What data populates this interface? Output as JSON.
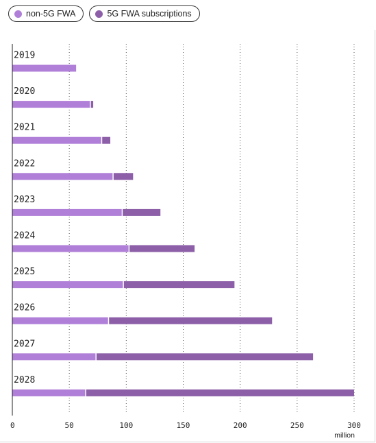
{
  "legend": [
    {
      "label": "non-5G FWA",
      "color": "#b07fd8"
    },
    {
      "label": "5G FWA subscriptions",
      "color": "#8c5fa8"
    }
  ],
  "chart_data": {
    "type": "bar",
    "orientation": "horizontal",
    "stacked": true,
    "categories": [
      "2019",
      "2020",
      "2021",
      "2022",
      "2023",
      "2024",
      "2025",
      "2026",
      "2027",
      "2028"
    ],
    "series": [
      {
        "name": "non-5G FWA",
        "color": "#b07fd8",
        "values": [
          56,
          68,
          78,
          88,
          96,
          102,
          97,
          84,
          73,
          64
        ]
      },
      {
        "name": "5G FWA subscriptions",
        "color": "#8c5fa8",
        "values": [
          0,
          3,
          8,
          18,
          34,
          58,
          98,
          144,
          191,
          236
        ]
      }
    ],
    "xlim": [
      0,
      300
    ],
    "xticks": [
      "0",
      "50",
      "100",
      "150",
      "200",
      "250",
      "300"
    ],
    "xlabel": "million",
    "grid": "vertical-dotted",
    "legend_position": "top-left"
  }
}
